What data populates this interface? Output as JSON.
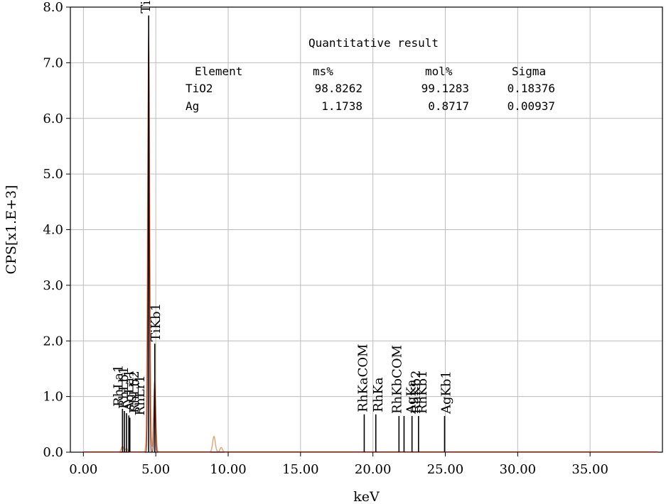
{
  "chart_data": {
    "type": "line",
    "xlabel": "keV",
    "ylabel": "CPS[x1.E+3]",
    "xlim": [
      -0.9,
      40.0
    ],
    "ylim": [
      0,
      8.0
    ],
    "x_ticks": [
      0,
      5,
      10,
      15,
      20,
      25,
      30,
      35
    ],
    "x_tick_labels": [
      "0.00",
      "5.00",
      "10.00",
      "15.00",
      "20.00",
      "25.00",
      "30.00",
      "35.00"
    ],
    "y_ticks": [
      0,
      1,
      2,
      3,
      4,
      5,
      6,
      7,
      8
    ],
    "y_tick_labels": [
      "0.0",
      "1.0",
      "2.0",
      "3.0",
      "4.0",
      "5.0",
      "6.0",
      "7.0",
      "8.0"
    ],
    "grid": true,
    "series": [
      {
        "color": "#e8a070",
        "peaks": [
          {
            "x": 2.7,
            "y": 0.1,
            "w": 0.08
          },
          {
            "x": 2.98,
            "y": 0.06,
            "w": 0.08
          },
          {
            "x": 4.51,
            "y": 7.3,
            "w": 0.075
          },
          {
            "x": 4.93,
            "y": 1.3,
            "w": 0.07
          },
          {
            "x": 9.02,
            "y": 0.28,
            "w": 0.09
          },
          {
            "x": 9.52,
            "y": 0.08,
            "w": 0.08
          }
        ]
      },
      {
        "color": "#7a1a10",
        "peaks": [
          {
            "x": 4.51,
            "y": 7.85,
            "w": 0.05
          },
          {
            "x": 4.93,
            "y": 1.3,
            "w": 0.05
          }
        ]
      }
    ],
    "peak_markers": [
      {
        "label": "RhLa1",
        "x": 2.7,
        "y_top": 0.78,
        "label_x": 2.7
      },
      {
        "label": "RhLb1",
        "x": 2.83,
        "y_top": 0.74,
        "label_x": 3.08
      },
      {
        "label": "AgLa1",
        "x": 2.98,
        "y_top": 0.7,
        "label_x": 3.45
      },
      {
        "label": "RhLb2",
        "x": 3.14,
        "y_top": 0.66,
        "label_x": 3.82
      },
      {
        "label": "RhLr1",
        "x": 3.21,
        "y_top": 0.62,
        "label_x": 4.21
      },
      {
        "label": "TiKa",
        "x": 4.51,
        "y_top": 7.85,
        "label_x": 4.6
      },
      {
        "label": "TiKb1",
        "x": 4.93,
        "y_top": 1.95,
        "label_x": 5.28
      },
      {
        "label": "RhKaCOM",
        "x": 19.4,
        "y_top": 0.68,
        "label_x": 19.6
      },
      {
        "label": "RhKa",
        "x": 20.2,
        "y_top": 0.68,
        "label_x": 20.65
      },
      {
        "label": "RhKbCOM",
        "x": 21.8,
        "y_top": 0.65,
        "label_x": 21.95
      },
      {
        "label": "AgKa",
        "x": 22.15,
        "y_top": 0.65,
        "label_x": 22.95
      },
      {
        "label": "RhKb2",
        "x": 22.7,
        "y_top": 0.65,
        "label_x": 23.25
      },
      {
        "label": "RhKb1",
        "x": 23.15,
        "y_top": 0.65,
        "label_x": 23.7
      },
      {
        "label": "AgKb1",
        "x": 24.95,
        "y_top": 0.65,
        "label_x": 25.35
      }
    ]
  },
  "quant_table": {
    "title": "Quantitative result",
    "headers": [
      "Element",
      "ms%",
      "mol%",
      "Sigma"
    ],
    "rows": [
      [
        "TiO2",
        "98.8262",
        "99.1283",
        "0.18376"
      ],
      [
        "Ag",
        "1.1738",
        "0.8717",
        "0.00937"
      ]
    ]
  }
}
